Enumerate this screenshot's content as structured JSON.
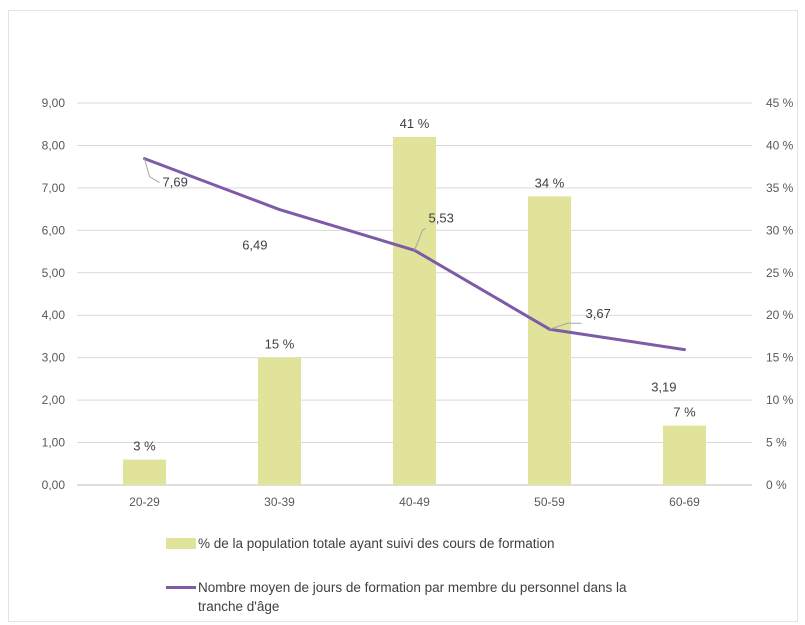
{
  "chart_data": {
    "type": "bar+line",
    "categories": [
      "20-29",
      "30-39",
      "40-49",
      "50-59",
      "60-69"
    ],
    "series": [
      {
        "name": "% de la population totale ayant suivi des cours de formation",
        "type": "bar",
        "axis": "right",
        "values": [
          3,
          15,
          41,
          34,
          7
        ],
        "labels": [
          "3 %",
          "15 %",
          "41 %",
          "34 %",
          "7 %"
        ],
        "color": "#e1e39b"
      },
      {
        "name": "Nombre moyen de jours de formation par membre du personnel dans la tranche d'âge",
        "type": "line",
        "axis": "left",
        "values": [
          7.69,
          6.49,
          5.53,
          3.67,
          3.19
        ],
        "labels": [
          "7,69",
          "6,49",
          "5,53",
          "3,67",
          "3,19"
        ],
        "color": "#7e5ba6"
      }
    ],
    "left_axis": {
      "ylim": [
        0,
        9
      ],
      "ticks": [
        "0,00",
        "1,00",
        "2,00",
        "3,00",
        "4,00",
        "5,00",
        "6,00",
        "7,00",
        "8,00",
        "9,00"
      ]
    },
    "right_axis": {
      "ylim": [
        0,
        45
      ],
      "ticks": [
        "0 %",
        "5 %",
        "10 %",
        "15 %",
        "20 %",
        "25 %",
        "30 %",
        "35 %",
        "40 %",
        "45 %"
      ]
    },
    "grid": true,
    "legend_position": "bottom"
  }
}
